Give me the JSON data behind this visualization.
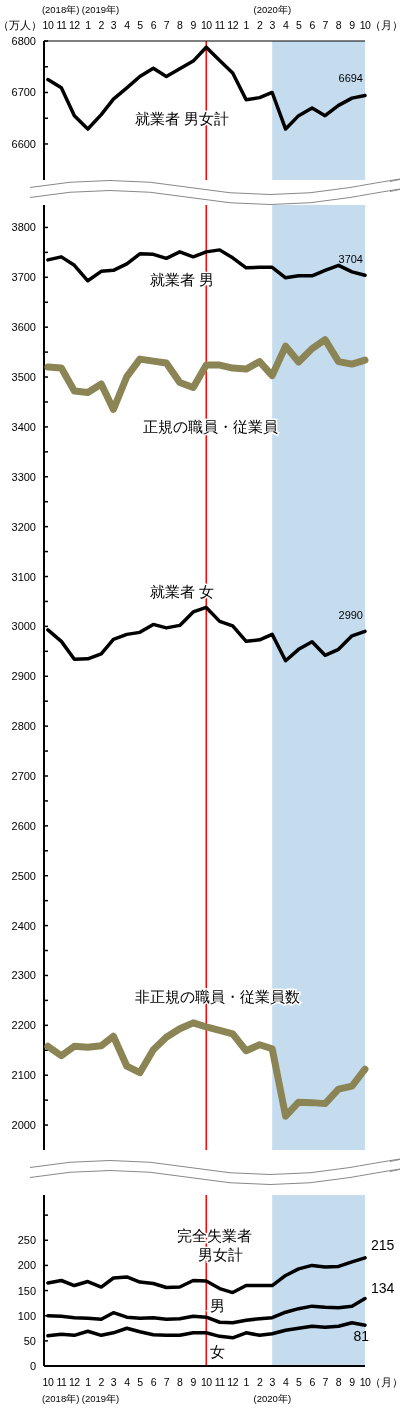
{
  "chart_data": [
    {
      "type": "line",
      "ylabel": "（万人）",
      "x2label": "（月）",
      "x": [
        "2018-10",
        "2018-11",
        "2018-12",
        "2019-01",
        "2019-02",
        "2019-03",
        "2019-04",
        "2019-05",
        "2019-06",
        "2019-07",
        "2019-08",
        "2019-09",
        "2019-10",
        "2019-11",
        "2019-12",
        "2020-01",
        "2020-02",
        "2020-03",
        "2020-04",
        "2020-05",
        "2020-06",
        "2020-07",
        "2020-08",
        "2020-09",
        "2020-10"
      ],
      "xlim": [
        "2018-09-22",
        "2020-10"
      ],
      "x2lim": [
        "2018-09-22",
        "2020-10"
      ],
      "x2ticks": [
        {
          "value": "2018-10",
          "label": "10"
        },
        {
          "value": "2018-11",
          "label": "11"
        },
        {
          "value": "2018-12",
          "label": "12"
        },
        {
          "value": "2019-01",
          "label": "1"
        },
        {
          "value": "2019-02",
          "label": "2"
        },
        {
          "value": "2019-03",
          "label": "3"
        },
        {
          "value": "2019-04",
          "label": "4"
        },
        {
          "value": "2019-05",
          "label": "5"
        },
        {
          "value": "2019-06",
          "label": "6"
        },
        {
          "value": "2019-07",
          "label": "7"
        },
        {
          "value": "2019-08",
          "label": "8"
        },
        {
          "value": "2019-09",
          "label": "9"
        },
        {
          "value": "2019-10",
          "label": "10"
        },
        {
          "value": "2019-11",
          "label": "11"
        },
        {
          "value": "2019-12",
          "label": "12"
        },
        {
          "value": "2020-01",
          "label": "1"
        },
        {
          "value": "2020-02",
          "label": "2"
        },
        {
          "value": "2020-03",
          "label": "3"
        },
        {
          "value": "2020-04",
          "label": "4"
        },
        {
          "value": "2020-05",
          "label": "5"
        },
        {
          "value": "2020-06",
          "label": "6"
        },
        {
          "value": "2020-07",
          "label": "7"
        },
        {
          "value": "2020-08",
          "label": "8"
        },
        {
          "value": "2020-09",
          "label": "9"
        },
        {
          "value": "2020-10",
          "label": "10"
        }
      ],
      "ylim": [
        6530,
        6800
      ],
      "yticks": [
        6600,
        {
          "value": 6650,
          "label": null
        },
        6700,
        {
          "value": 6750,
          "label": null
        },
        6800
      ],
      "tick_labels": "y",
      "series": [
        {
          "name": "就業者 男女計",
          "color": "#000000",
          "values": [
            6725,
            6709,
            6655,
            6629,
            6657,
            6687,
            6709,
            6731,
            6747,
            6731,
            6746,
            6761,
            6788,
            6762,
            6738,
            6686,
            6690,
            6700,
            6629,
            6655,
            6670,
            6655,
            6675,
            6689,
            6694
          ],
          "value_labels": [
            null,
            null,
            null,
            null,
            null,
            null,
            null,
            null,
            null,
            null,
            null,
            null,
            null,
            null,
            null,
            null,
            null,
            null,
            null,
            null,
            null,
            null,
            null,
            null,
            "6694"
          ]
        }
      ],
      "ref_lines": [
        {
          "axis": "x",
          "value": "2019-10",
          "color": "#ff0000"
        }
      ],
      "bands": [
        {
          "axis": "x",
          "from": "2020-03",
          "to": "2020-10",
          "color": "#c5dcee"
        }
      ],
      "annotations": [
        "(2018年)",
        "(2019年)",
        "(2020年)"
      ],
      "grid": false,
      "line_style": "solid"
    },
    {
      "type": "line",
      "x": [
        "2018-10",
        "2018-11",
        "2018-12",
        "2019-01",
        "2019-02",
        "2019-03",
        "2019-04",
        "2019-05",
        "2019-06",
        "2019-07",
        "2019-08",
        "2019-09",
        "2019-10",
        "2019-11",
        "2019-12",
        "2020-01",
        "2020-02",
        "2020-03",
        "2020-04",
        "2020-05",
        "2020-06",
        "2020-07",
        "2020-08",
        "2020-09",
        "2020-10"
      ],
      "xlim": [
        "2018-09-22",
        "2020-10"
      ],
      "ylim": [
        1950,
        3845
      ],
      "yticks": [
        2000,
        {
          "value": 2050,
          "label": null
        },
        2100,
        {
          "value": 2150,
          "label": null
        },
        2200,
        {
          "value": 2250,
          "label": null
        },
        2300,
        {
          "value": 2350,
          "label": null
        },
        2400,
        {
          "value": 2450,
          "label": null
        },
        2500,
        {
          "value": 2550,
          "label": null
        },
        2600,
        {
          "value": 2650,
          "label": null
        },
        2700,
        {
          "value": 2750,
          "label": null
        },
        2800,
        {
          "value": 2850,
          "label": null
        },
        2900,
        {
          "value": 2950,
          "label": null
        },
        3000,
        {
          "value": 3050,
          "label": null
        },
        3100,
        {
          "value": 3150,
          "label": null
        },
        3200,
        {
          "value": 3250,
          "label": null
        },
        3300,
        {
          "value": 3350,
          "label": null
        },
        3400,
        {
          "value": 3450,
          "label": null
        },
        3500,
        {
          "value": 3550,
          "label": null
        },
        3600,
        {
          "value": 3650,
          "label": null
        },
        3700,
        {
          "value": 3750,
          "label": null
        },
        3800
      ],
      "tick_labels": "y",
      "series": [
        {
          "name": "就業者 男",
          "color": "#000000",
          "values": [
            3735,
            3741,
            3724,
            3693,
            3712,
            3714,
            3727,
            3747,
            3746,
            3738,
            3751,
            3741,
            3751,
            3755,
            3739,
            3719,
            3720,
            3720,
            3699,
            3703,
            3703,
            3714,
            3724,
            3711,
            3704
          ],
          "value_labels": [
            null,
            null,
            null,
            null,
            null,
            null,
            null,
            null,
            null,
            null,
            null,
            null,
            null,
            null,
            null,
            null,
            null,
            null,
            null,
            null,
            null,
            null,
            null,
            null,
            "3704"
          ]
        },
        {
          "name": "正規の職員・従業員",
          "color": "#8b8455",
          "values": [
            3520,
            3518,
            3472,
            3469,
            3486,
            3435,
            3501,
            3536,
            3532,
            3528,
            3489,
            3479,
            3524,
            3524,
            3518,
            3516,
            3531,
            3503,
            3562,
            3530,
            3557,
            3575,
            3531,
            3526,
            3534
          ]
        },
        {
          "name": "就業者 女",
          "color": "#000000",
          "values": [
            2993,
            2970,
            2934,
            2935,
            2945,
            2974,
            2984,
            2988,
            3004,
            2997,
            3002,
            3029,
            3038,
            3010,
            3001,
            2970,
            2973,
            2984,
            2931,
            2954,
            2969,
            2942,
            2954,
            2981,
            2990
          ],
          "value_labels": [
            null,
            null,
            null,
            null,
            null,
            null,
            null,
            null,
            null,
            null,
            null,
            null,
            null,
            null,
            null,
            null,
            null,
            null,
            null,
            null,
            null,
            null,
            null,
            null,
            "2990"
          ]
        },
        {
          "name": "非正規の職員・従業員数",
          "color": "#8b8455",
          "values": [
            2158,
            2139,
            2158,
            2156,
            2159,
            2178,
            2118,
            2105,
            2151,
            2176,
            2193,
            2205,
            2197,
            2190,
            2183,
            2149,
            2161,
            2153,
            2018,
            2046,
            2045,
            2043,
            2072,
            2078,
            2112
          ]
        }
      ],
      "ref_lines": [
        {
          "axis": "x",
          "value": "2019-10",
          "color": "#ff0000"
        }
      ],
      "bands": [
        {
          "axis": "x",
          "from": "2020-03",
          "to": "2020-10",
          "color": "#c5dcee"
        }
      ],
      "grid": false,
      "line_style": "solid"
    },
    {
      "type": "line",
      "xlabel": "（月）",
      "x": [
        "2018-10",
        "2018-11",
        "2018-12",
        "2019-01",
        "2019-02",
        "2019-03",
        "2019-04",
        "2019-05",
        "2019-06",
        "2019-07",
        "2019-08",
        "2019-09",
        "2019-10",
        "2019-11",
        "2019-12",
        "2020-01",
        "2020-02",
        "2020-03",
        "2020-04",
        "2020-05",
        "2020-06",
        "2020-07",
        "2020-08",
        "2020-09",
        "2020-10"
      ],
      "xlim": [
        "2018-09-22",
        "2020-10"
      ],
      "xticks": [
        {
          "value": "2018-10",
          "label": "10"
        },
        {
          "value": "2018-11",
          "label": "11"
        },
        {
          "value": "2018-12",
          "label": "12"
        },
        {
          "value": "2019-01",
          "label": "1"
        },
        {
          "value": "2019-02",
          "label": "2"
        },
        {
          "value": "2019-03",
          "label": "3"
        },
        {
          "value": "2019-04",
          "label": "4"
        },
        {
          "value": "2019-05",
          "label": "5"
        },
        {
          "value": "2019-06",
          "label": "6"
        },
        {
          "value": "2019-07",
          "label": "7"
        },
        {
          "value": "2019-08",
          "label": "8"
        },
        {
          "value": "2019-09",
          "label": "9"
        },
        {
          "value": "2019-10",
          "label": "10"
        },
        {
          "value": "2019-11",
          "label": "11"
        },
        {
          "value": "2019-12",
          "label": "12"
        },
        {
          "value": "2020-01",
          "label": "1"
        },
        {
          "value": "2020-02",
          "label": "2"
        },
        {
          "value": "2020-03",
          "label": "3"
        },
        {
          "value": "2020-04",
          "label": "4"
        },
        {
          "value": "2020-05",
          "label": "5"
        },
        {
          "value": "2020-06",
          "label": "6"
        },
        {
          "value": "2020-07",
          "label": "7"
        },
        {
          "value": "2020-08",
          "label": "8"
        },
        {
          "value": "2020-09",
          "label": "9"
        },
        {
          "value": "2020-10",
          "label": "10"
        }
      ],
      "ylim": [
        0,
        340
      ],
      "yticks": [
        0,
        50,
        100,
        150,
        200,
        250,
        {
          "value": 300,
          "label": null
        }
      ],
      "series": [
        {
          "name": "完全失業者男女計",
          "color": "#000000",
          "values": [
            165,
            170,
            160,
            168,
            157,
            175,
            177,
            167,
            164,
            156,
            157,
            170,
            169,
            154,
            146,
            160,
            160,
            160,
            180,
            193,
            200,
            197,
            198,
            207,
            215
          ],
          "value_labels": [
            null,
            null,
            null,
            null,
            null,
            null,
            null,
            null,
            null,
            null,
            null,
            null,
            null,
            null,
            null,
            null,
            null,
            null,
            null,
            null,
            null,
            null,
            null,
            null,
            "215"
          ]
        },
        {
          "name": "男",
          "color": "#000000",
          "values": [
            100,
            99,
            96,
            95,
            93,
            106,
            97,
            95,
            96,
            93,
            94,
            99,
            97,
            87,
            86,
            91,
            94,
            96,
            107,
            114,
            119,
            117,
            116,
            119,
            134
          ],
          "value_labels": [
            null,
            null,
            null,
            null,
            null,
            null,
            null,
            null,
            null,
            null,
            null,
            null,
            null,
            null,
            null,
            null,
            null,
            null,
            null,
            null,
            null,
            null,
            null,
            null,
            "134"
          ]
        },
        {
          "name": "女",
          "color": "#000000",
          "values": [
            60,
            63,
            61,
            69,
            61,
            66,
            75,
            68,
            62,
            61,
            61,
            66,
            66,
            59,
            56,
            66,
            61,
            64,
            71,
            75,
            79,
            77,
            79,
            86,
            81
          ],
          "value_labels": [
            null,
            null,
            null,
            null,
            null,
            null,
            null,
            null,
            null,
            null,
            null,
            null,
            null,
            null,
            null,
            null,
            null,
            null,
            null,
            null,
            null,
            null,
            null,
            null,
            "81"
          ]
        }
      ],
      "ref_lines": [
        {
          "axis": "x",
          "value": "2019-10",
          "color": "#ff0000"
        }
      ],
      "bands": [
        {
          "axis": "x",
          "from": "2020-03",
          "to": "2020-10",
          "color": "#c5dcee"
        }
      ],
      "annotations": [
        "(2018年)",
        "(2019年)",
        "(2020年)"
      ],
      "grid": false,
      "line_style": "solid"
    }
  ]
}
